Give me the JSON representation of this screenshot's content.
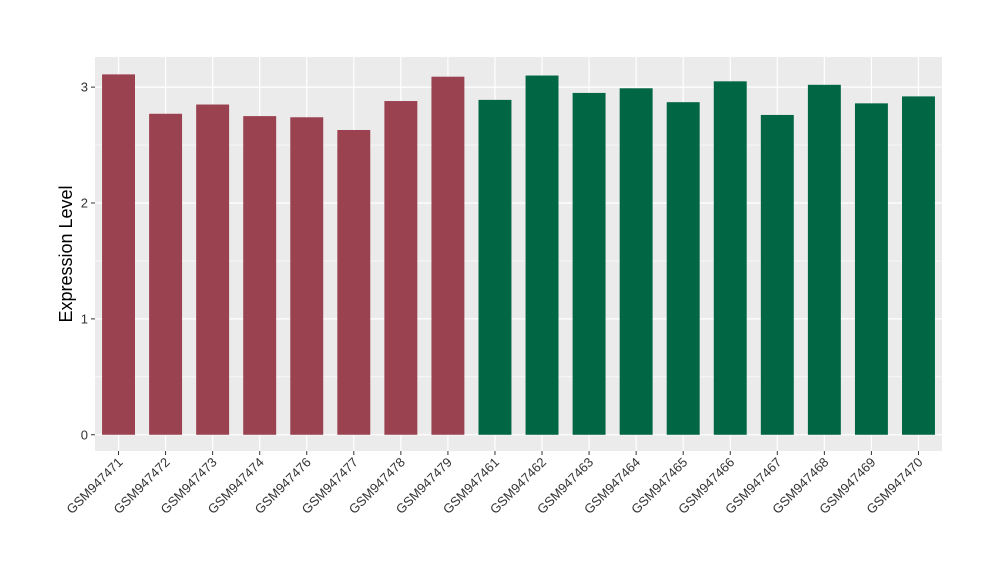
{
  "chart_data": {
    "type": "bar",
    "title": "",
    "xlabel": "",
    "ylabel": "Expression Level",
    "ylim": [
      -0.14,
      3.26
    ],
    "yticks": [
      0,
      1,
      2,
      3
    ],
    "grid": true,
    "categories": [
      "GSM947471",
      "GSM947472",
      "GSM947473",
      "GSM947474",
      "GSM947476",
      "GSM947477",
      "GSM947478",
      "GSM947479",
      "GSM947461",
      "GSM947462",
      "GSM947463",
      "GSM947464",
      "GSM947465",
      "GSM947466",
      "GSM947467",
      "GSM947468",
      "GSM947469",
      "GSM947470"
    ],
    "values": [
      3.11,
      2.77,
      2.85,
      2.75,
      2.74,
      2.63,
      2.88,
      3.09,
      2.89,
      3.1,
      2.95,
      2.99,
      2.87,
      3.05,
      2.76,
      3.02,
      2.86,
      2.92
    ],
    "bar_colors": [
      "#9b4250",
      "#9b4250",
      "#9b4250",
      "#9b4250",
      "#9b4250",
      "#9b4250",
      "#9b4250",
      "#9b4250",
      "#006644",
      "#006644",
      "#006644",
      "#006644",
      "#006644",
      "#006644",
      "#006644",
      "#006644",
      "#006644",
      "#006644"
    ],
    "panel_color": "#ebebeb",
    "grid_color": "#ffffff"
  }
}
